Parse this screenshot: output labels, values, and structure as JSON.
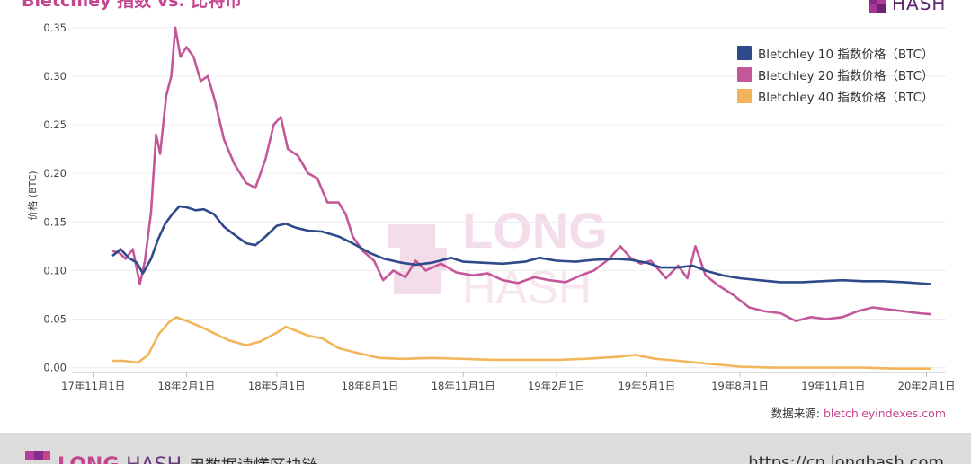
{
  "header": {
    "title": "Bletchley 指数 vs. 比特币",
    "logo_text": "HASH"
  },
  "watermark": {
    "top": "LONG",
    "bottom": "HASH"
  },
  "source": {
    "label": "数据来源: ",
    "link": "bletchleyindexes.com"
  },
  "footer": {
    "brand_long": "LONG",
    "brand_hash": "HASH",
    "slogan": "用数据读懂区块链",
    "url": "https://cn.longhash.com"
  },
  "colors": {
    "index10": "#2e4a8a",
    "index20": "#c4579a",
    "index40": "#f3b55a",
    "accent": "#c4468f"
  },
  "chart_data": {
    "type": "line",
    "ylabel": "价格 (BTC)",
    "ylim": [
      -0.005,
      0.36
    ],
    "yticks": [
      0.0,
      0.05,
      0.1,
      0.15,
      0.2,
      0.25,
      0.3,
      0.35
    ],
    "ytick_labels": [
      "0.00",
      "0.05",
      "0.10",
      "0.15",
      "0.20",
      "0.25",
      "0.30",
      "0.35"
    ],
    "xlim": [
      "2017-10-11",
      "2020-02-20"
    ],
    "xticks": [
      "2017-11-01",
      "2018-02-01",
      "2018-05-01",
      "2018-08-01",
      "2018-11-01",
      "2019-02-01",
      "2019-05-01",
      "2019-08-01",
      "2019-11-01",
      "2020-02-01"
    ],
    "xtick_labels": [
      "17年11月1日",
      "18年2月1日",
      "18年5月1日",
      "18年8月1日",
      "18年11月1日",
      "19年2月1日",
      "19年5月1日",
      "19年8月1日",
      "19年11月1日",
      "20年2月1日"
    ],
    "grid": true,
    "legend_position": "top-right",
    "series": [
      {
        "name": "Bletchley 10 指数价格（BTC）",
        "color": "#2e4a8a",
        "points": [
          [
            "2017-11-20",
            0.115
          ],
          [
            "2017-11-28",
            0.122
          ],
          [
            "2017-12-06",
            0.113
          ],
          [
            "2017-12-14",
            0.108
          ],
          [
            "2017-12-20",
            0.097
          ],
          [
            "2017-12-28",
            0.112
          ],
          [
            "2018-01-04",
            0.132
          ],
          [
            "2018-01-11",
            0.148
          ],
          [
            "2018-01-18",
            0.158
          ],
          [
            "2018-01-25",
            0.166
          ],
          [
            "2018-02-01",
            0.165
          ],
          [
            "2018-02-10",
            0.162
          ],
          [
            "2018-02-18",
            0.163
          ],
          [
            "2018-02-28",
            0.158
          ],
          [
            "2018-03-10",
            0.145
          ],
          [
            "2018-03-20",
            0.137
          ],
          [
            "2018-04-01",
            0.128
          ],
          [
            "2018-04-10",
            0.126
          ],
          [
            "2018-04-20",
            0.135
          ],
          [
            "2018-05-01",
            0.146
          ],
          [
            "2018-05-10",
            0.148
          ],
          [
            "2018-05-20",
            0.144
          ],
          [
            "2018-06-01",
            0.141
          ],
          [
            "2018-06-15",
            0.14
          ],
          [
            "2018-07-01",
            0.135
          ],
          [
            "2018-07-15",
            0.128
          ],
          [
            "2018-08-01",
            0.118
          ],
          [
            "2018-08-15",
            0.112
          ],
          [
            "2018-09-01",
            0.108
          ],
          [
            "2018-09-15",
            0.106
          ],
          [
            "2018-10-01",
            0.108
          ],
          [
            "2018-10-20",
            0.113
          ],
          [
            "2018-11-01",
            0.109
          ],
          [
            "2018-11-20",
            0.108
          ],
          [
            "2018-12-10",
            0.107
          ],
          [
            "2019-01-01",
            0.109
          ],
          [
            "2019-01-15",
            0.113
          ],
          [
            "2019-02-01",
            0.11
          ],
          [
            "2019-02-20",
            0.109
          ],
          [
            "2019-03-10",
            0.111
          ],
          [
            "2019-04-01",
            0.112
          ],
          [
            "2019-04-15",
            0.111
          ],
          [
            "2019-05-01",
            0.108
          ],
          [
            "2019-05-15",
            0.103
          ],
          [
            "2019-06-01",
            0.103
          ],
          [
            "2019-06-15",
            0.105
          ],
          [
            "2019-07-01",
            0.099
          ],
          [
            "2019-07-15",
            0.095
          ],
          [
            "2019-08-01",
            0.092
          ],
          [
            "2019-08-20",
            0.09
          ],
          [
            "2019-09-10",
            0.088
          ],
          [
            "2019-10-01",
            0.088
          ],
          [
            "2019-10-20",
            0.089
          ],
          [
            "2019-11-10",
            0.09
          ],
          [
            "2019-12-01",
            0.089
          ],
          [
            "2019-12-20",
            0.089
          ],
          [
            "2020-01-10",
            0.088
          ],
          [
            "2020-02-05",
            0.086
          ]
        ]
      },
      {
        "name": "Bletchley 20 指数价格（BTC）",
        "color": "#c4579a",
        "points": [
          [
            "2017-11-20",
            0.12
          ],
          [
            "2017-11-27",
            0.118
          ],
          [
            "2017-12-03",
            0.112
          ],
          [
            "2017-12-10",
            0.122
          ],
          [
            "2017-12-17",
            0.086
          ],
          [
            "2017-12-22",
            0.11
          ],
          [
            "2017-12-28",
            0.16
          ],
          [
            "2018-01-02",
            0.24
          ],
          [
            "2018-01-06",
            0.22
          ],
          [
            "2018-01-12",
            0.28
          ],
          [
            "2018-01-17",
            0.3
          ],
          [
            "2018-01-21",
            0.35
          ],
          [
            "2018-01-26",
            0.32
          ],
          [
            "2018-02-01",
            0.33
          ],
          [
            "2018-02-08",
            0.32
          ],
          [
            "2018-02-15",
            0.295
          ],
          [
            "2018-02-22",
            0.3
          ],
          [
            "2018-03-01",
            0.275
          ],
          [
            "2018-03-10",
            0.235
          ],
          [
            "2018-03-20",
            0.21
          ],
          [
            "2018-04-01",
            0.19
          ],
          [
            "2018-04-10",
            0.185
          ],
          [
            "2018-04-20",
            0.215
          ],
          [
            "2018-04-28",
            0.25
          ],
          [
            "2018-05-05",
            0.258
          ],
          [
            "2018-05-12",
            0.225
          ],
          [
            "2018-05-22",
            0.218
          ],
          [
            "2018-06-01",
            0.2
          ],
          [
            "2018-06-10",
            0.195
          ],
          [
            "2018-06-20",
            0.17
          ],
          [
            "2018-07-01",
            0.17
          ],
          [
            "2018-07-08",
            0.158
          ],
          [
            "2018-07-15",
            0.135
          ],
          [
            "2018-07-25",
            0.12
          ],
          [
            "2018-08-05",
            0.11
          ],
          [
            "2018-08-14",
            0.09
          ],
          [
            "2018-08-24",
            0.1
          ],
          [
            "2018-09-05",
            0.093
          ],
          [
            "2018-09-15",
            0.11
          ],
          [
            "2018-09-25",
            0.1
          ],
          [
            "2018-10-10",
            0.107
          ],
          [
            "2018-10-25",
            0.098
          ],
          [
            "2018-11-10",
            0.095
          ],
          [
            "2018-11-25",
            0.097
          ],
          [
            "2018-12-10",
            0.09
          ],
          [
            "2018-12-25",
            0.087
          ],
          [
            "2019-01-10",
            0.093
          ],
          [
            "2019-01-25",
            0.09
          ],
          [
            "2019-02-10",
            0.088
          ],
          [
            "2019-02-25",
            0.095
          ],
          [
            "2019-03-10",
            0.1
          ],
          [
            "2019-03-25",
            0.112
          ],
          [
            "2019-04-05",
            0.125
          ],
          [
            "2019-04-15",
            0.113
          ],
          [
            "2019-04-25",
            0.107
          ],
          [
            "2019-05-05",
            0.11
          ],
          [
            "2019-05-20",
            0.092
          ],
          [
            "2019-06-01",
            0.105
          ],
          [
            "2019-06-10",
            0.092
          ],
          [
            "2019-06-18",
            0.125
          ],
          [
            "2019-06-28",
            0.095
          ],
          [
            "2019-07-10",
            0.085
          ],
          [
            "2019-07-25",
            0.075
          ],
          [
            "2019-08-10",
            0.062
          ],
          [
            "2019-08-25",
            0.058
          ],
          [
            "2019-09-10",
            0.056
          ],
          [
            "2019-09-25",
            0.048
          ],
          [
            "2019-10-10",
            0.052
          ],
          [
            "2019-10-25",
            0.05
          ],
          [
            "2019-11-10",
            0.052
          ],
          [
            "2019-11-25",
            0.058
          ],
          [
            "2019-12-10",
            0.062
          ],
          [
            "2019-12-25",
            0.06
          ],
          [
            "2020-01-10",
            0.058
          ],
          [
            "2020-01-25",
            0.056
          ],
          [
            "2020-02-05",
            0.055
          ]
        ]
      },
      {
        "name": "Bletchley 40 指数价格（BTC）",
        "color": "#f3b55a",
        "points": [
          [
            "2017-11-20",
            0.007
          ],
          [
            "2017-12-01",
            0.007
          ],
          [
            "2017-12-15",
            0.005
          ],
          [
            "2017-12-25",
            0.013
          ],
          [
            "2018-01-05",
            0.035
          ],
          [
            "2018-01-15",
            0.047
          ],
          [
            "2018-01-22",
            0.052
          ],
          [
            "2018-02-01",
            0.048
          ],
          [
            "2018-02-15",
            0.042
          ],
          [
            "2018-03-01",
            0.035
          ],
          [
            "2018-03-15",
            0.028
          ],
          [
            "2018-04-01",
            0.023
          ],
          [
            "2018-04-15",
            0.027
          ],
          [
            "2018-05-01",
            0.036
          ],
          [
            "2018-05-10",
            0.042
          ],
          [
            "2018-05-20",
            0.038
          ],
          [
            "2018-06-01",
            0.033
          ],
          [
            "2018-06-15",
            0.03
          ],
          [
            "2018-07-01",
            0.02
          ],
          [
            "2018-07-20",
            0.015
          ],
          [
            "2018-08-10",
            0.01
          ],
          [
            "2018-09-01",
            0.009
          ],
          [
            "2018-10-01",
            0.01
          ],
          [
            "2018-11-01",
            0.009
          ],
          [
            "2018-12-01",
            0.008
          ],
          [
            "2019-01-01",
            0.008
          ],
          [
            "2019-02-01",
            0.008
          ],
          [
            "2019-03-01",
            0.009
          ],
          [
            "2019-04-01",
            0.011
          ],
          [
            "2019-04-20",
            0.013
          ],
          [
            "2019-05-10",
            0.009
          ],
          [
            "2019-06-01",
            0.007
          ],
          [
            "2019-07-01",
            0.004
          ],
          [
            "2019-08-01",
            0.001
          ],
          [
            "2019-09-01",
            0.0
          ],
          [
            "2019-10-01",
            0.0
          ],
          [
            "2019-11-01",
            0.0
          ],
          [
            "2019-12-01",
            0.0
          ],
          [
            "2020-01-01",
            -0.001
          ],
          [
            "2020-02-05",
            -0.001
          ]
        ]
      }
    ]
  }
}
